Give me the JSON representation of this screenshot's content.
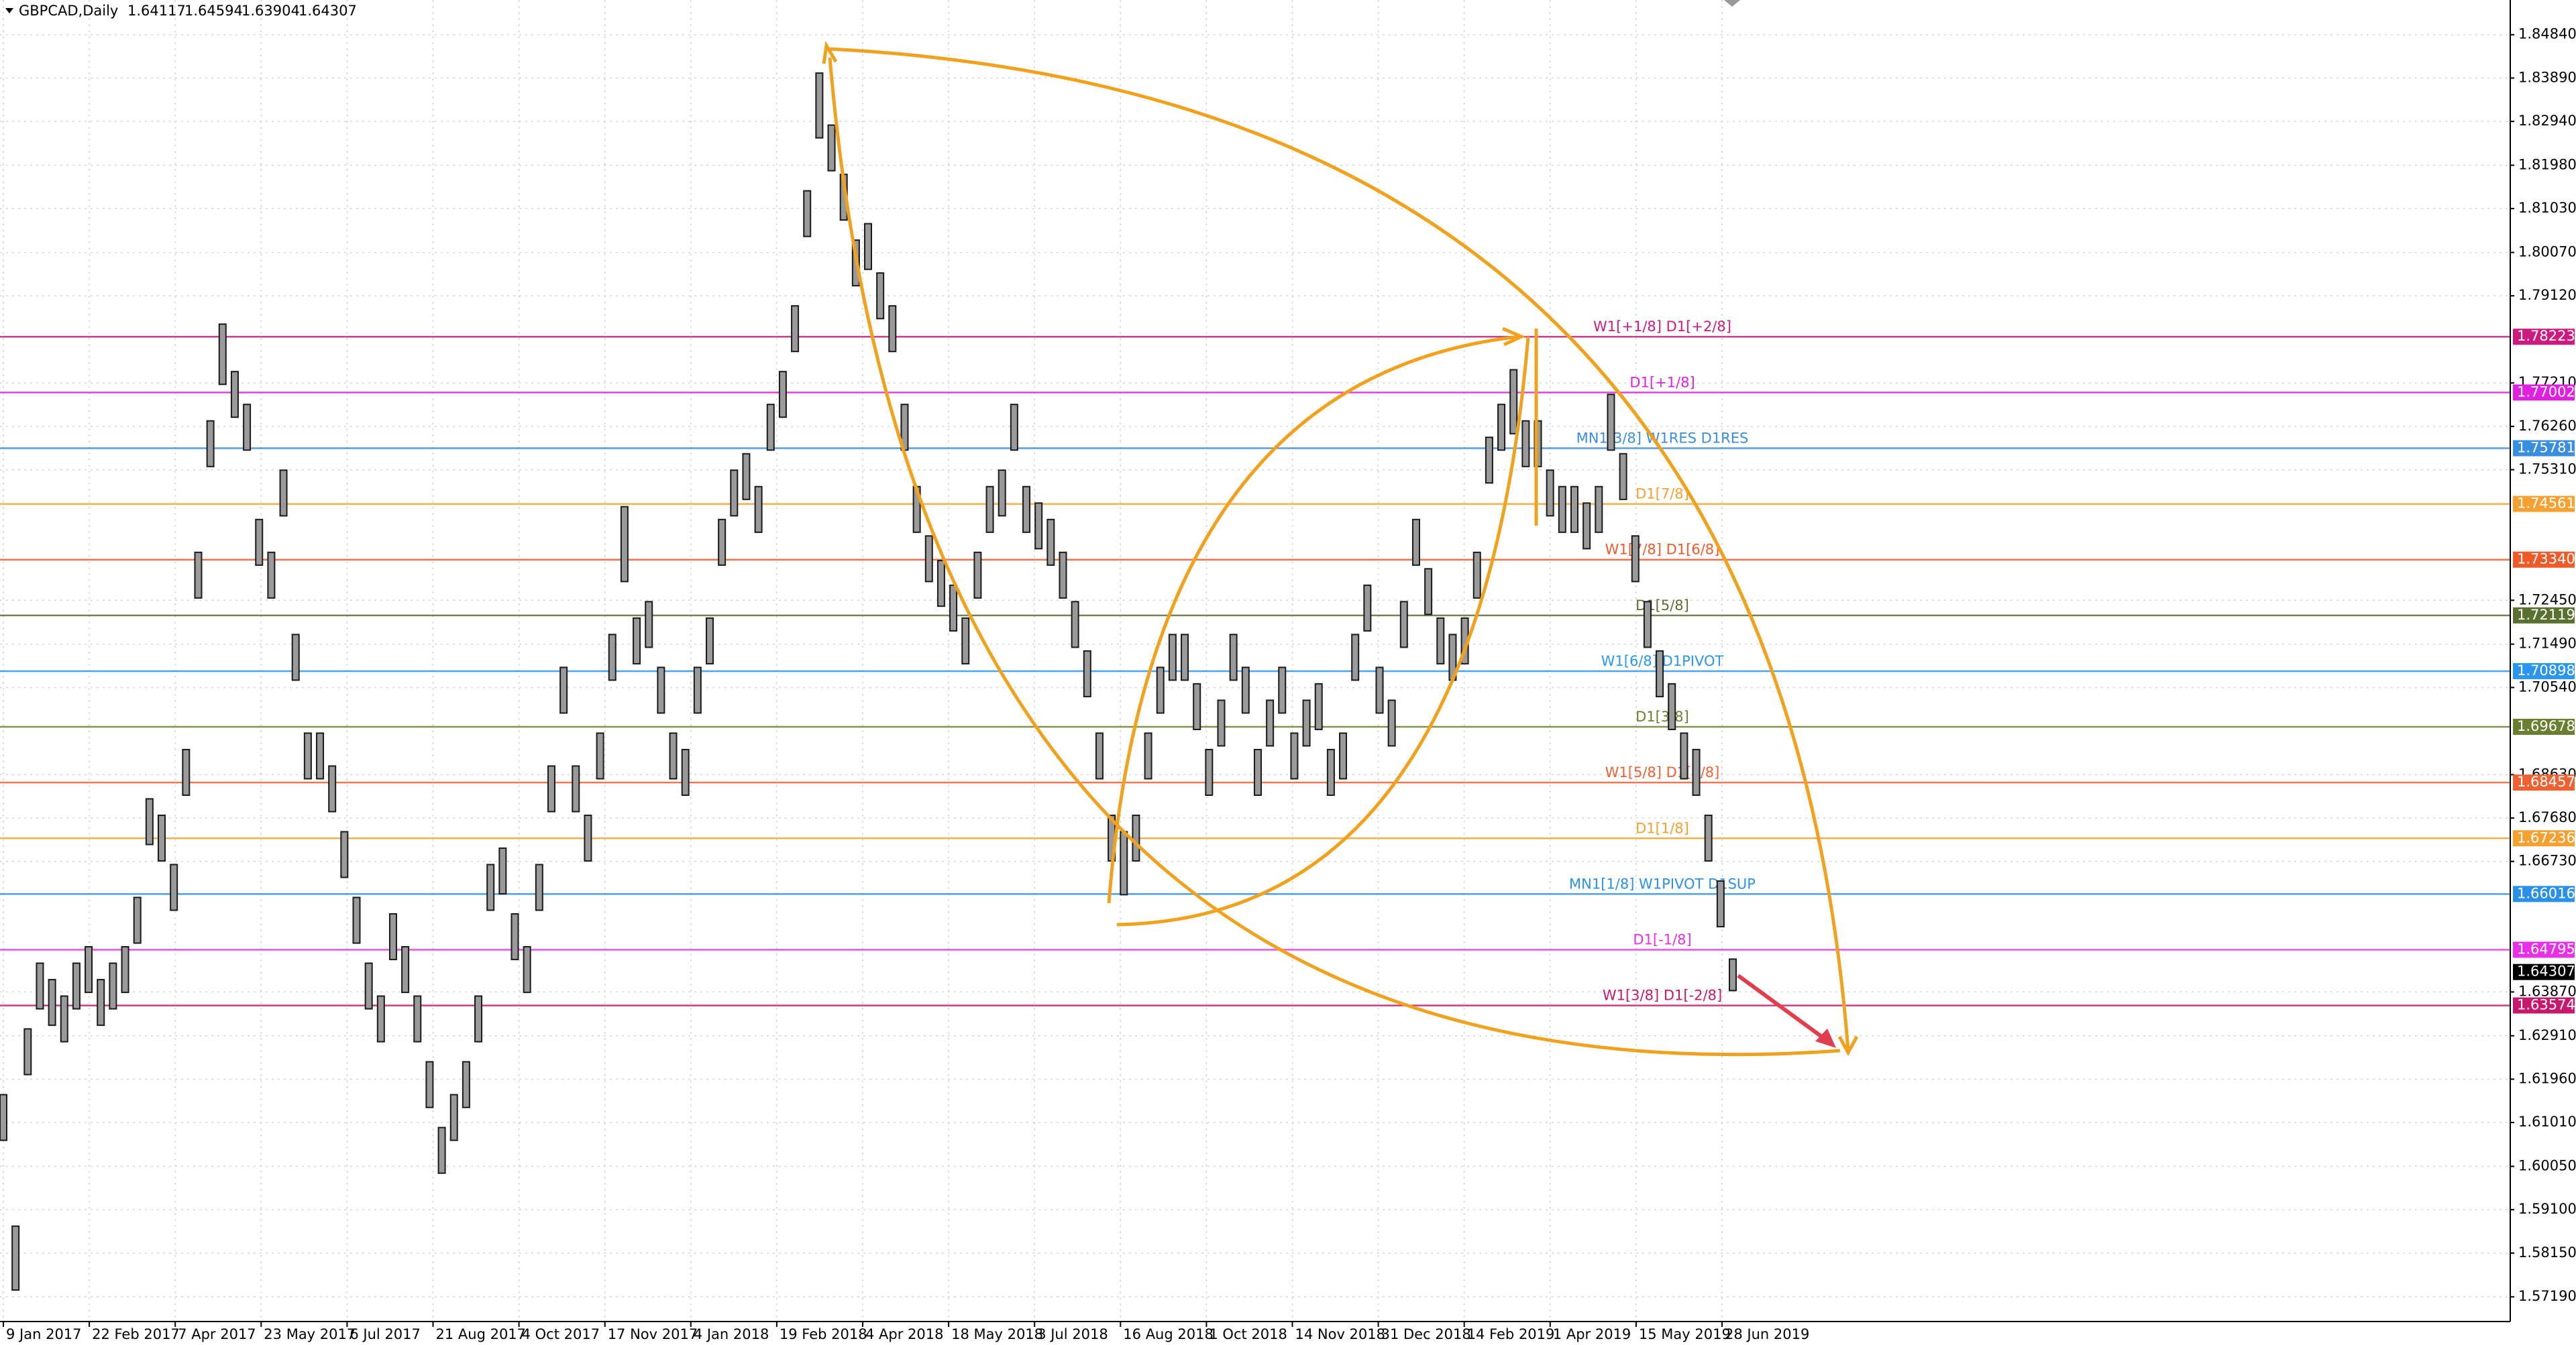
{
  "chart_data": {
    "type": "candlestick",
    "title": "GBPCAD,Daily",
    "ohlc": [
      1.64117,
      1.64594,
      1.63904,
      1.64307
    ],
    "categories": [
      "9 Jan 2017",
      "22 Feb 2017",
      "7 Apr 2017",
      "23 May 2017",
      "6 Jul 2017",
      "21 Aug 2017",
      "4 Oct 2017",
      "17 Nov 2017",
      "4 Jan 2018",
      "19 Feb 2018",
      "4 Apr 2018",
      "18 May 2018",
      "3 Jul 2018",
      "16 Aug 2018",
      "1 Oct 2018",
      "14 Nov 2018",
      "31 Dec 2018",
      "14 Feb 2019",
      "1 Apr 2019",
      "15 May 2019",
      "28 Jun 2019"
    ],
    "high": [
      1.6162,
      1.5874,
      1.6306,
      1.645,
      1.6414,
      1.6378,
      1.645,
      1.6486,
      1.6414,
      1.645,
      1.6486,
      1.6594,
      1.681,
      1.6774,
      1.6666,
      1.6918,
      1.735,
      1.7638,
      1.785,
      1.7746,
      1.7674,
      1.7422,
      1.735,
      1.753,
      1.717,
      1.6954,
      1.6954,
      1.6882,
      1.6738,
      1.6594,
      1.645,
      1.6378,
      1.6558,
      1.6486,
      1.6378,
      1.6234,
      1.609,
      1.6162,
      1.6234,
      1.6378,
      1.6666,
      1.6702,
      1.6558,
      1.6486,
      1.6666,
      1.6882,
      1.7098,
      1.6882,
      1.6774,
      1.6954,
      1.717,
      1.745,
      1.7206,
      1.7242,
      1.7098,
      1.6954,
      1.6918,
      1.7098,
      1.7206,
      1.7422,
      1.753,
      1.7566,
      1.7494,
      1.7674,
      1.7746,
      1.789,
      1.8142,
      1.84,
      1.8286,
      1.8178,
      1.8034,
      1.807,
      1.7962,
      1.789,
      1.7674,
      1.7494,
      1.7386,
      1.7332,
      1.7278,
      1.7206,
      1.735,
      1.7494,
      1.753,
      1.7674,
      1.7494,
      1.7458,
      1.7422,
      1.735,
      1.7242,
      1.7134,
      1.6954,
      1.6774,
      1.6738,
      1.6774,
      1.6954,
      1.7098,
      1.717,
      1.717,
      1.7062,
      1.6918,
      1.7026,
      1.717,
      1.7098,
      1.6918,
      1.7026,
      1.7098,
      1.6954,
      1.7026,
      1.7062,
      1.6918,
      1.6954,
      1.717,
      1.7278,
      1.7098,
      1.7026,
      1.7242,
      1.7422,
      1.7314,
      1.7206,
      1.717,
      1.7206,
      1.735,
      1.7602,
      1.7674,
      1.775,
      1.7638,
      1.7638,
      1.753,
      1.7494,
      1.7494,
      1.7458,
      1.7494,
      1.7696,
      1.7566,
      1.7386,
      1.7242,
      1.7134,
      1.7062,
      1.6954,
      1.6918,
      1.6774,
      1.663,
      1.6459
    ],
    "low": [
      1.6062,
      1.5734,
      1.6206,
      1.635,
      1.6314,
      1.6278,
      1.635,
      1.6386,
      1.6314,
      1.635,
      1.6386,
      1.6494,
      1.671,
      1.6674,
      1.6566,
      1.6818,
      1.725,
      1.7538,
      1.7718,
      1.7646,
      1.7574,
      1.7322,
      1.725,
      1.743,
      1.707,
      1.6854,
      1.6854,
      1.6782,
      1.6638,
      1.6494,
      1.635,
      1.6278,
      1.6458,
      1.6386,
      1.6278,
      1.6134,
      1.599,
      1.6062,
      1.6134,
      1.6278,
      1.6566,
      1.6602,
      1.6458,
      1.6386,
      1.6566,
      1.6782,
      1.6998,
      1.6782,
      1.6674,
      1.6854,
      1.707,
      1.7286,
      1.7106,
      1.7142,
      1.6998,
      1.6854,
      1.6818,
      1.6998,
      1.7106,
      1.7322,
      1.743,
      1.7466,
      1.7394,
      1.7574,
      1.7646,
      1.779,
      1.8042,
      1.8258,
      1.8186,
      1.8078,
      1.7934,
      1.797,
      1.7862,
      1.779,
      1.7574,
      1.7394,
      1.7286,
      1.7232,
      1.7178,
      1.7106,
      1.725,
      1.7394,
      1.743,
      1.7574,
      1.7394,
      1.7358,
      1.7322,
      1.725,
      1.7142,
      1.7034,
      1.6854,
      1.6674,
      1.66,
      1.6674,
      1.6854,
      1.6998,
      1.707,
      1.707,
      1.6962,
      1.6818,
      1.6926,
      1.707,
      1.6998,
      1.6818,
      1.6926,
      1.6998,
      1.6854,
      1.6926,
      1.6962,
      1.6818,
      1.6854,
      1.707,
      1.7178,
      1.6998,
      1.6926,
      1.7142,
      1.7322,
      1.7214,
      1.7106,
      1.707,
      1.7106,
      1.725,
      1.7502,
      1.7574,
      1.761,
      1.7538,
      1.7538,
      1.743,
      1.7394,
      1.7394,
      1.7358,
      1.7394,
      1.7574,
      1.7466,
      1.7286,
      1.7142,
      1.7034,
      1.6962,
      1.6854,
      1.6818,
      1.6674,
      1.653,
      1.639
    ],
    "candle_color": "#1a1a1a",
    "ylim": [
      1.5665,
      1.856
    ],
    "yticks": [
      {
        "value": 1.8484,
        "label": "1.84840"
      },
      {
        "value": 1.8389,
        "label": "1.83890"
      },
      {
        "value": 1.8294,
        "label": "1.82940"
      },
      {
        "value": 1.8198,
        "label": "1.81980"
      },
      {
        "value": 1.8103,
        "label": "1.81030"
      },
      {
        "value": 1.8007,
        "label": "1.80070"
      },
      {
        "value": 1.7912,
        "label": "1.79120"
      },
      {
        "value": 1.7721,
        "label": "1.77210"
      },
      {
        "value": 1.7626,
        "label": "1.76260"
      },
      {
        "value": 1.7531,
        "label": "1.75310"
      },
      {
        "value": 1.7245,
        "label": "1.72450"
      },
      {
        "value": 1.7149,
        "label": "1.71490"
      },
      {
        "value": 1.7054,
        "label": "1.70540"
      },
      {
        "value": 1.6863,
        "label": "1.68630"
      },
      {
        "value": 1.6768,
        "label": "1.67680"
      },
      {
        "value": 1.6673,
        "label": "1.66730"
      },
      {
        "value": 1.6387,
        "label": "1.63870"
      },
      {
        "value": 1.6291,
        "label": "1.62910"
      },
      {
        "value": 1.6196,
        "label": "1.61960"
      },
      {
        "value": 1.6101,
        "label": "1.61010"
      },
      {
        "value": 1.6005,
        "label": "1.60050"
      },
      {
        "value": 1.591,
        "label": "1.59100"
      },
      {
        "value": 1.5815,
        "label": "1.58150"
      },
      {
        "value": 1.5719,
        "label": "1.57190"
      }
    ],
    "grid": true,
    "levels": [
      {
        "name": "W1[+1/8] D1[+2/8]",
        "color": "#cc1a80",
        "value": 1.78223
      },
      {
        "name": "D1[+1/8]",
        "color": "#e020e0",
        "value": 1.77002
      },
      {
        "name": "MN1[3/8] W1RES D1RES",
        "color": "#3a8ee0",
        "value": 1.75781
      },
      {
        "name": "D1[7/8]",
        "color": "#f5a030",
        "value": 1.74561
      },
      {
        "name": "W1[7/8] D1[6/8]",
        "color": "#f05a28",
        "value": 1.7334,
        "value_label": "1.73340"
      },
      {
        "name": "D1[5/8]",
        "color": "#5a7030",
        "value": 1.72119
      },
      {
        "name": "W1[6/8] D1PIVOT",
        "color": "#2a96f0",
        "value": 1.70898
      },
      {
        "name": "D1[3/8]",
        "color": "#6b7f30",
        "value": 1.69678
      },
      {
        "name": "W1[5/8] D1[2/8]",
        "color": "#f06030",
        "value": 1.68457
      },
      {
        "name": "D1[1/8]",
        "color": "#f5a030",
        "value": 1.67236
      },
      {
        "name": "MN1[1/8] W1PIVOT D1SUP",
        "color": "#2a90e8",
        "value": 1.66016
      },
      {
        "name": "D1[-1/8]",
        "color": "#e830e8",
        "value": 1.64795
      },
      {
        "name": "W1[3/8] D1[-2/8]",
        "color": "#c8186e",
        "value": 1.63574
      }
    ]
  }
}
